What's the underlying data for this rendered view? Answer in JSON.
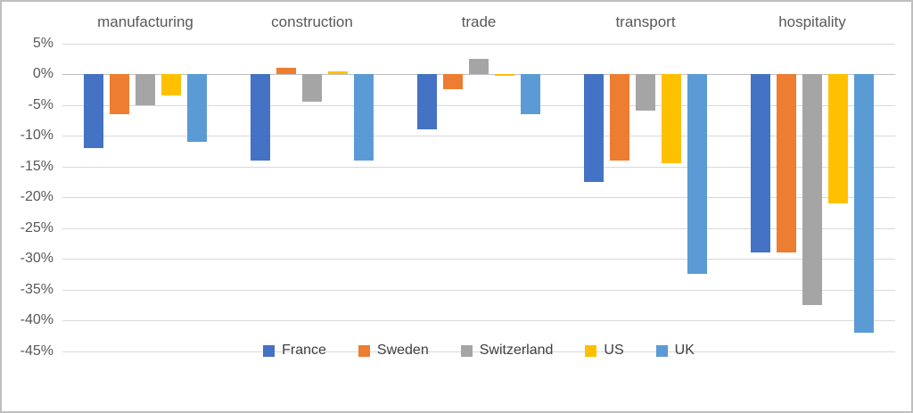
{
  "chart_data": {
    "type": "bar",
    "title": "",
    "xlabel": "",
    "ylabel": "",
    "categories": [
      "manufacturing",
      "construction",
      "trade",
      "transport",
      "hospitality"
    ],
    "series": [
      {
        "name": "France",
        "color": "#4472C4",
        "values": [
          -12,
          -14,
          -9,
          -17.5,
          -29
        ]
      },
      {
        "name": "Sweden",
        "color": "#ED7D31",
        "values": [
          -6.5,
          1,
          -2.5,
          -14,
          -29
        ]
      },
      {
        "name": "Switzerland",
        "color": "#A5A5A5",
        "values": [
          -5,
          -4.5,
          2.5,
          -6,
          -37.5
        ]
      },
      {
        "name": "US",
        "color": "#FFC000",
        "values": [
          -3.5,
          0.5,
          -0.3,
          -14.5,
          -21
        ]
      },
      {
        "name": "UK",
        "color": "#5B9BD5",
        "values": [
          -11,
          -14,
          -6.5,
          -32.5,
          -42
        ]
      }
    ],
    "ylim": [
      -45,
      5
    ],
    "ytick_values": [
      5,
      0,
      -5,
      -10,
      -15,
      -20,
      -25,
      -30,
      -35,
      -40,
      -45
    ],
    "ytick_labels": [
      "5%",
      "0%",
      "-5%",
      "-10%",
      "-15%",
      "-20%",
      "-25%",
      "-30%",
      "-35%",
      "-40%",
      "-45%"
    ],
    "grid": true,
    "legend_position": "bottom"
  },
  "colors": {
    "gridline": "#D9D9D9",
    "zero_line": "#BFBFBF",
    "axis_text": "#595959",
    "category_text": "#595959",
    "legend_text": "#404040",
    "frame_border": "#BFBFBF",
    "background": "#FFFFFF"
  }
}
